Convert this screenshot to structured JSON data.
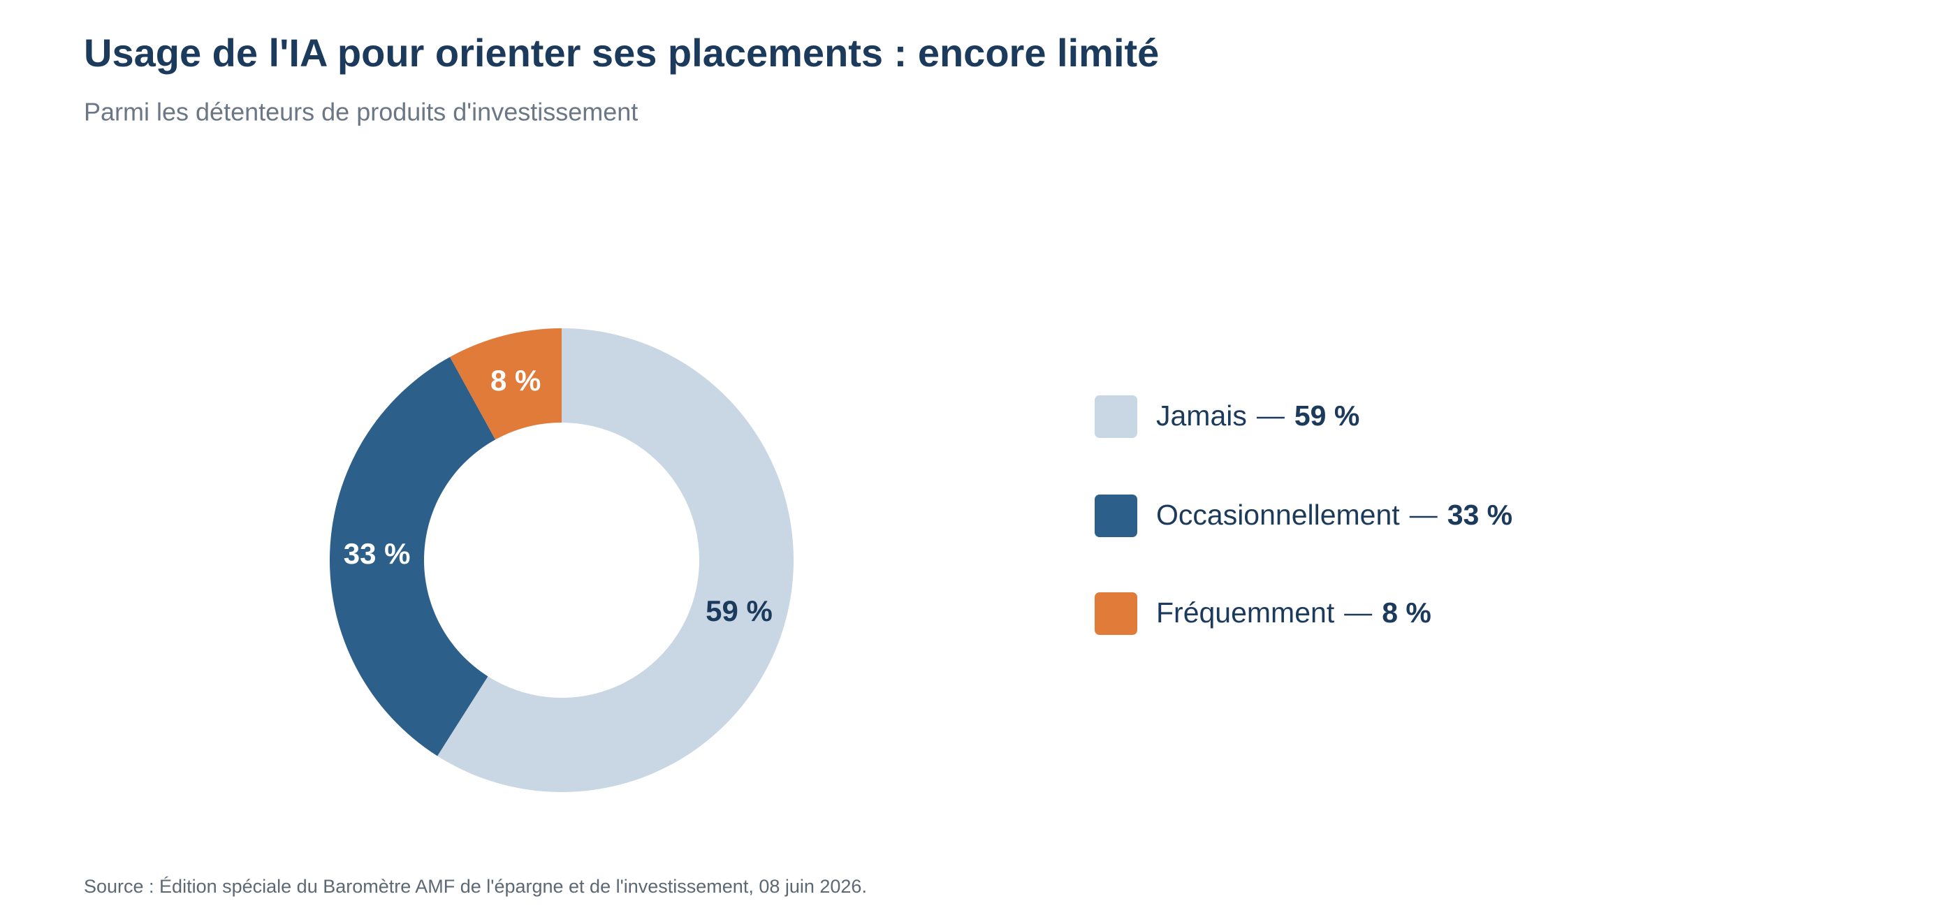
{
  "chart_data": {
    "type": "donut",
    "title": "Usage de l'IA pour orienter ses placements : encore limité",
    "subtitle": "Parmi les détenteurs de produits d'investissement",
    "categories": [
      "Jamais",
      "Occasionnellement",
      "Fréquemment"
    ],
    "values": [
      59,
      33,
      8
    ],
    "value_labels": [
      "59 %",
      "33 %",
      "8 %"
    ],
    "colors": [
      "#c9d6e3",
      "#2c5f8a",
      "#e07b39"
    ],
    "label_colors": [
      "#1b3a5c",
      "#ffffff",
      "#ffffff"
    ],
    "legend": "right",
    "source": "Source : Édition spéciale du Baromètre AMF de l'épargne et de l'investissement, 08 juin 2026."
  }
}
